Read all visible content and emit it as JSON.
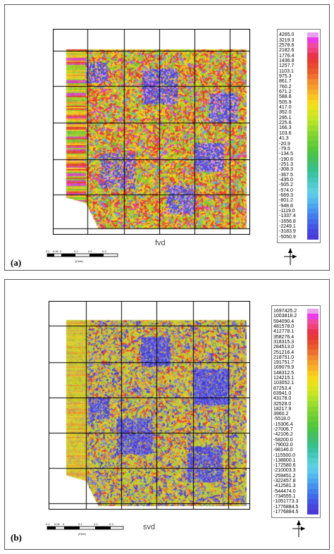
{
  "panels": [
    {
      "label": "(a)",
      "title": "fvd",
      "colorbar_labels": [
        "4265.0",
        "3219.3",
        "2578.6",
        "2182.6",
        "1776.4",
        "1436.8",
        "1257.7",
        "1103.1",
        "975.3",
        "861.7",
        "760.2",
        "671.2",
        "588.8",
        "505.9",
        "417.0",
        "352.0",
        "295.1",
        "225.6",
        "166.3",
        "103.6",
        "41.3",
        "-20.9",
        "-79.5",
        "-134.5",
        "-190.6",
        "-251.3",
        "-308.3",
        "-367.5",
        "-435.0",
        "-505.2",
        "-574.0",
        "-669.3",
        "-801.2",
        "-948.8",
        "-1119.0",
        "-1337.4",
        "-1656.8",
        "-2249.1",
        "-3183.9",
        "-5050.9"
      ],
      "colorbar_colors": [
        "#e6a2ee",
        "#ee3be8",
        "#f24aa0",
        "#f0437a",
        "#e8354d",
        "#e73b36",
        "#e9492f",
        "#ea5a2c",
        "#ed7030",
        "#f28a2e",
        "#f59d2c",
        "#f7b126",
        "#f8c620",
        "#f7d91c",
        "#ebe11b",
        "#d8e41f",
        "#c6e522",
        "#b0e228",
        "#9bdc2d",
        "#86d630",
        "#76d234",
        "#66cd36",
        "#56c83a",
        "#4bc449",
        "#44c05c",
        "#3ebf73",
        "#38c08b",
        "#3bc2a3",
        "#46c7bb",
        "#53ccd0",
        "#5cd0e1",
        "#5bc7ea",
        "#54b8ee",
        "#4ba5ef",
        "#4690ee",
        "#437ced",
        "#4368ea",
        "#4456e5",
        "#4646df",
        "#4a3ad8"
      ],
      "scale_ticks": [
        "0.1",
        "0.05",
        "0",
        "0.1",
        "0.2",
        "0.3"
      ],
      "scale_unit": "(Feet)"
    },
    {
      "label": "(b)",
      "title": "svd",
      "colorbar_labels": [
        "1697425.2",
        "1003818.2",
        "594090.4",
        "481578.0",
        "412778.1",
        "358276.4",
        "318315.3",
        "284513.0",
        "251216.4",
        "218751.0",
        "191751.7",
        "169079.9",
        "148312.5",
        "124215.1",
        "103052.1",
        "87253.4",
        "63941.0",
        "43178.0",
        "32528.0",
        "18217.9",
        "3960.2",
        "-5518.0",
        "-15306.4",
        "-27006.7",
        "-42106.2",
        "-58200.0",
        "-79002.0",
        "-98146.0",
        "-115500.0",
        "-138800.1",
        "-172580.6",
        "-210003.3",
        "-259451.2",
        "-322457.8",
        "-412581.3",
        "-544474.0",
        "-734555.1",
        "-1051773.3",
        "-1776884.5",
        "-1776884.5"
      ],
      "colorbar_colors": [
        "#e6a2ee",
        "#ee3be8",
        "#f24aa0",
        "#f0437a",
        "#e8354d",
        "#e73b36",
        "#e9492f",
        "#ea5a2c",
        "#ed7030",
        "#f28a2e",
        "#f59d2c",
        "#f7b126",
        "#f8c620",
        "#f7d91c",
        "#ebe11b",
        "#d8e41f",
        "#c6e522",
        "#b0e228",
        "#9bdc2d",
        "#86d630",
        "#76d234",
        "#66cd36",
        "#56c83a",
        "#4bc449",
        "#44c05c",
        "#3ebf73",
        "#38c08b",
        "#3bc2a3",
        "#46c7bb",
        "#53ccd0",
        "#5cd0e1",
        "#5bc7ea",
        "#54b8ee",
        "#4ba5ef",
        "#4690ee",
        "#437ced",
        "#4368ea",
        "#4456e5",
        "#4646df",
        "#4a3ad8"
      ],
      "scale_ticks": [
        "0.1",
        "0.05",
        "0",
        "0.1",
        "0.2",
        "0.3"
      ],
      "scale_unit": "(Feet)"
    }
  ]
}
